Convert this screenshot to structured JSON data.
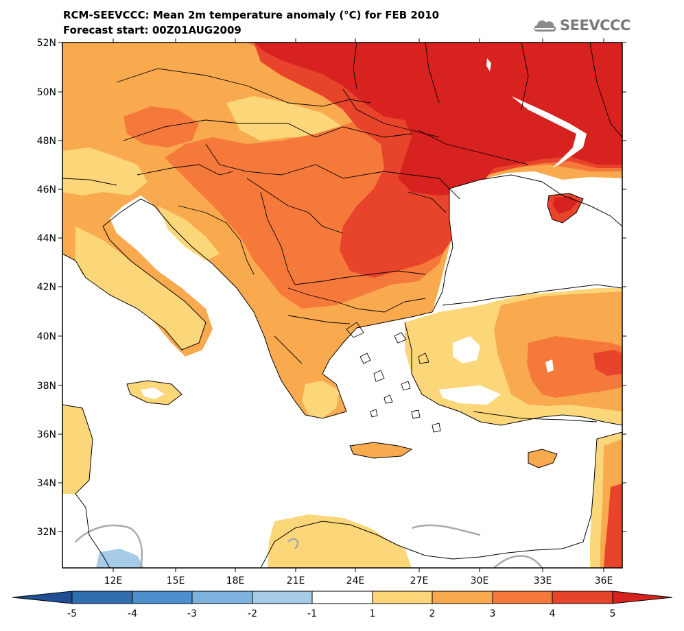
{
  "header": {
    "title_line1": "RCM-SEEVCCC: Mean 2m temperature anomaly (°C) for FEB 2010",
    "title_line2": "Forecast start: 00Z01AUG2009",
    "logo_text": "SEEVCCC"
  },
  "map": {
    "region": "South-East Europe / Eastern Mediterranean",
    "variable": "Mean 2m temperature anomaly",
    "unit": "°C",
    "lat_labels": [
      "52N",
      "50N",
      "48N",
      "46N",
      "44N",
      "42N",
      "40N",
      "38N",
      "36N",
      "34N",
      "32N"
    ],
    "lon_labels": [
      "12E",
      "15E",
      "18E",
      "21E",
      "24E",
      "27E",
      "30E",
      "33E",
      "36E"
    ],
    "warmest_area": "Ukraine / Romania / Moldova (4–5 °C)",
    "coolest_area": "Libya coast (-2 to -1 °C)"
  },
  "legend": {
    "levels": [
      "-5",
      "-4",
      "-3",
      "-2",
      "-1",
      "1",
      "2",
      "3",
      "4",
      "5"
    ],
    "colors": [
      "#1f4e94",
      "#2f6fb0",
      "#4b8fcc",
      "#7fb3df",
      "#a6cbe6",
      "#ffffff",
      "#fcd77a",
      "#f9a94e",
      "#f5793b",
      "#e8442b",
      "#d7221f"
    ]
  }
}
